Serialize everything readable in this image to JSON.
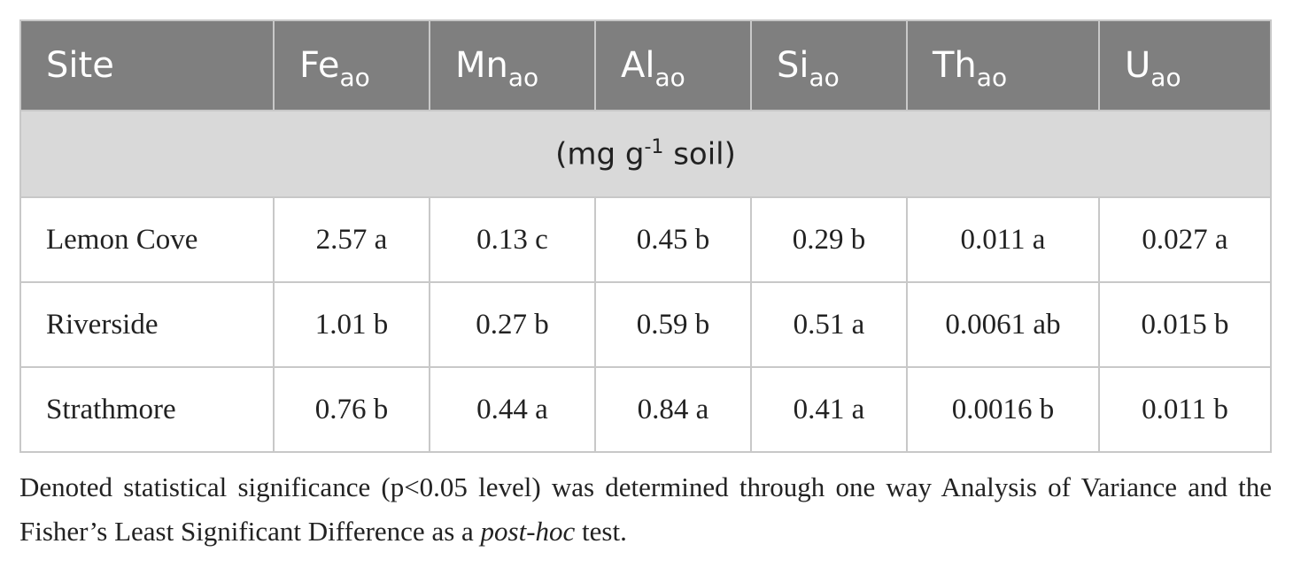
{
  "table": {
    "header": [
      {
        "main": "Site"
      },
      {
        "main": "Fe",
        "sub": "ao"
      },
      {
        "main": "Mn",
        "sub": "ao"
      },
      {
        "main": "Al",
        "sub": "ao"
      },
      {
        "main": "Si",
        "sub": "ao"
      },
      {
        "main": "Th",
        "sub": "ao"
      },
      {
        "main": "U",
        "sub": "ao"
      }
    ],
    "units": {
      "before": "(mg g",
      "sup": "-1",
      "after": "soil)"
    },
    "rows": [
      [
        "Lemon Cove",
        "2.57 a",
        "0.13 c",
        "0.45 b",
        "0.29 b",
        "0.011 a",
        "0.027 a"
      ],
      [
        "Riverside",
        "1.01 b",
        "0.27 b",
        "0.59 b",
        "0.51 a",
        "0.0061 ab",
        "0.015 b"
      ],
      [
        "Strathmore",
        "0.76 b",
        "0.44 a",
        "0.84 a",
        "0.41 a",
        "0.0016 b",
        "0.011 b"
      ]
    ]
  },
  "footnote": {
    "before": "Denoted statistical significance (p<0.05 level) was determined through one way Analysis of Variance and the Fisher’s Least Significant Difference as a",
    "italic": "post-hoc",
    "after": "test."
  }
}
